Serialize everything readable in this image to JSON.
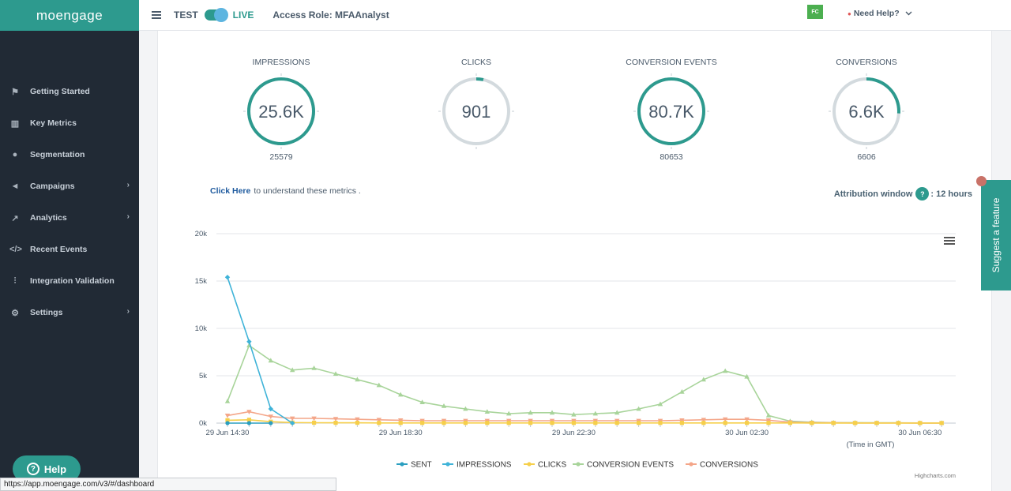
{
  "app": {
    "logo": "moengage"
  },
  "header": {
    "mode_test": "TEST",
    "mode_live": "LIVE",
    "access_role": "Access Role: MFAAnalyst",
    "avatar_initials": "FC",
    "need_help": "Need Help?"
  },
  "sidebar": {
    "items": [
      {
        "label": "Getting Started",
        "icon": "flag-icon",
        "has_submenu": false
      },
      {
        "label": "Key Metrics",
        "icon": "bar-chart-icon",
        "has_submenu": false
      },
      {
        "label": "Segmentation",
        "icon": "users-icon",
        "has_submenu": false
      },
      {
        "label": "Campaigns",
        "icon": "megaphone-icon",
        "has_submenu": true
      },
      {
        "label": "Analytics",
        "icon": "line-chart-icon",
        "has_submenu": true
      },
      {
        "label": "Recent Events",
        "icon": "code-icon",
        "has_submenu": false
      },
      {
        "label": "Integration Validation",
        "icon": "sliders-icon",
        "has_submenu": false
      },
      {
        "label": "Settings",
        "icon": "gear-icon",
        "has_submenu": true
      }
    ],
    "help_button": "Help"
  },
  "metrics": [
    {
      "label": "IMPRESSIONS",
      "display": "25.6K",
      "raw": "25579",
      "fill": 1.0
    },
    {
      "label": "CLICKS",
      "display": "901",
      "raw": "901",
      "fill": 0.035
    },
    {
      "label": "CONVERSION EVENTS",
      "display": "80.7K",
      "raw": "80653",
      "fill": 1.0
    },
    {
      "label": "CONVERSIONS",
      "display": "6.6K",
      "raw": "6606",
      "fill": 0.26
    }
  ],
  "info": {
    "click_here": "Click Here",
    "click_here_rest": "to understand these metrics .",
    "attribution_label": "Attribution window",
    "attribution_value": ": 12 hours"
  },
  "colors": {
    "accent": "#2d9a8e",
    "sent": "#2b9fc0",
    "impressions": "#3fb3d8",
    "clicks": "#f6cf4a",
    "conversion_events": "#a8d49a",
    "conversions": "#f4a689"
  },
  "chart_data": {
    "type": "line",
    "x": [
      "29 Jun 14:30",
      "29 Jun 15:00",
      "29 Jun 15:30",
      "29 Jun 16:00",
      "29 Jun 16:30",
      "29 Jun 17:00",
      "29 Jun 17:30",
      "29 Jun 18:00",
      "29 Jun 18:30",
      "29 Jun 19:00",
      "29 Jun 19:30",
      "29 Jun 20:00",
      "29 Jun 20:30",
      "29 Jun 21:00",
      "29 Jun 21:30",
      "29 Jun 22:00",
      "29 Jun 22:30",
      "29 Jun 23:00",
      "29 Jun 23:30",
      "30 Jun 00:00",
      "30 Jun 00:30",
      "30 Jun 01:00",
      "30 Jun 01:30",
      "30 Jun 02:00",
      "30 Jun 02:30",
      "30 Jun 03:00",
      "30 Jun 03:30",
      "30 Jun 04:00",
      "30 Jun 04:30",
      "30 Jun 05:00",
      "30 Jun 05:30",
      "30 Jun 06:00",
      "30 Jun 06:30",
      "30 Jun 07:00"
    ],
    "x_tick_labels": [
      "29 Jun 14:30",
      "29 Jun 18:30",
      "29 Jun 22:30",
      "30 Jun 02:30",
      "30 Jun 06:30"
    ],
    "xlabel": "(Time in GMT)",
    "ylabel": "",
    "y_tick_labels": [
      "0k",
      "5k",
      "10k",
      "15k",
      "20k"
    ],
    "ylim": [
      0,
      20000
    ],
    "grid": true,
    "legend": "bottom-center",
    "credit": "Highcharts.com",
    "series": [
      {
        "name": "SENT",
        "values": [
          0,
          0,
          0,
          null,
          null,
          null,
          null,
          null,
          null,
          null,
          null,
          null,
          null,
          null,
          null,
          null,
          null,
          null,
          null,
          null,
          null,
          null,
          null,
          null,
          null,
          null,
          null,
          null,
          null,
          null,
          null,
          null,
          null,
          null
        ]
      },
      {
        "name": "IMPRESSIONS",
        "values": [
          15400,
          8600,
          1500,
          0,
          null,
          null,
          null,
          null,
          null,
          null,
          null,
          null,
          null,
          null,
          null,
          null,
          null,
          null,
          null,
          null,
          null,
          null,
          null,
          null,
          null,
          null,
          null,
          null,
          null,
          null,
          null,
          null,
          null,
          null
        ]
      },
      {
        "name": "CLICKS",
        "values": [
          300,
          350,
          150,
          60,
          40,
          30,
          30,
          20,
          20,
          20,
          20,
          20,
          20,
          20,
          20,
          20,
          20,
          20,
          20,
          20,
          20,
          20,
          20,
          20,
          20,
          20,
          20,
          10,
          10,
          10,
          10,
          10,
          10,
          10
        ]
      },
      {
        "name": "CONVERSION EVENTS",
        "values": [
          2300,
          8200,
          6600,
          5600,
          5800,
          5200,
          4600,
          4000,
          3000,
          2200,
          1800,
          1500,
          1200,
          1000,
          1100,
          1100,
          900,
          1000,
          1100,
          1500,
          2000,
          3300,
          4600,
          5500,
          4900,
          800,
          200,
          100,
          50,
          50,
          30,
          30,
          20,
          20
        ]
      },
      {
        "name": "CONVERSIONS",
        "values": [
          800,
          1200,
          700,
          500,
          500,
          450,
          400,
          350,
          300,
          250,
          250,
          250,
          250,
          250,
          250,
          250,
          250,
          250,
          250,
          250,
          250,
          300,
          350,
          400,
          400,
          300,
          100,
          50,
          30,
          20,
          20,
          20,
          10,
          10
        ]
      }
    ]
  },
  "suggest_feature": "Suggest a feature",
  "status_url": "https://app.moengage.com/v3/#/dashboard"
}
